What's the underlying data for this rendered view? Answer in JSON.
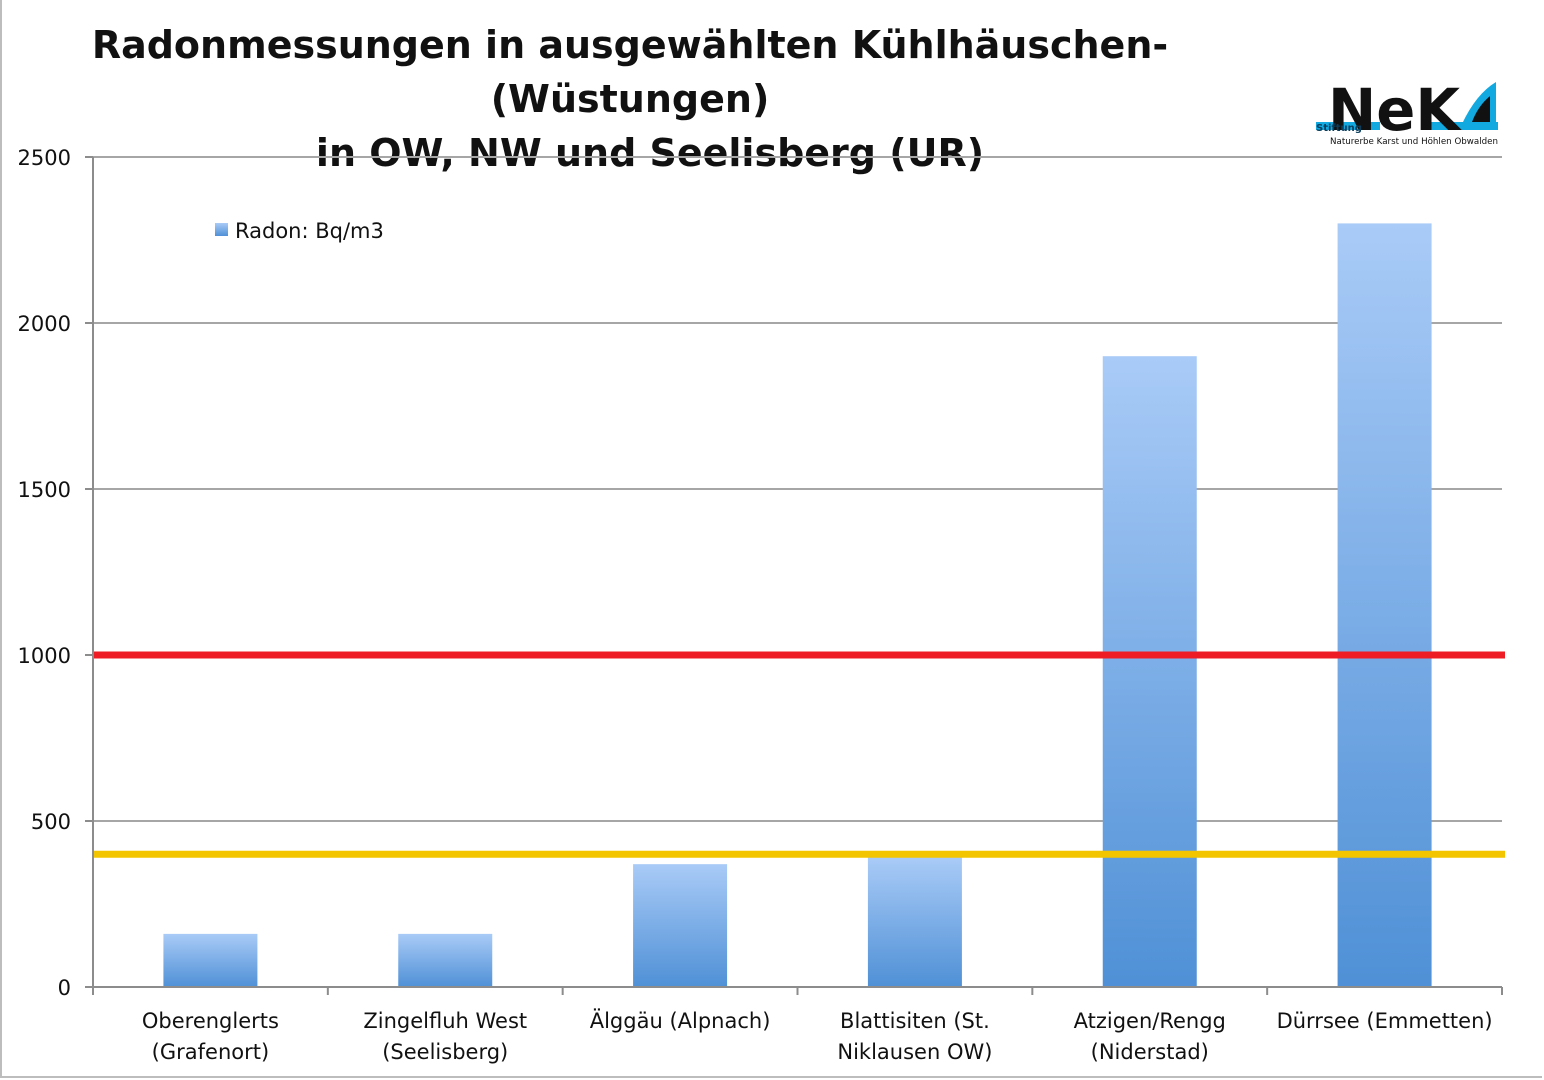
{
  "chart_data": {
    "type": "bar",
    "title_lines": [
      "Radonmessungen in ausgewählten Kühlhäuschen-(Wüstungen)",
      "in OW, NW und Seelisberg (UR)"
    ],
    "categories": [
      [
        "Oberenglerts",
        "(Grafenort)"
      ],
      [
        "Zingelfluh West",
        "(Seelisberg)"
      ],
      [
        "Älggäu (Alpnach)"
      ],
      [
        "Blattisiten (St.",
        "Niklausen OW)"
      ],
      [
        "Atzigen/Rengg",
        "(Niderstad)"
      ],
      [
        "Dürrsee (Emmetten)"
      ]
    ],
    "series": [
      {
        "name": "Radon: Bq/m3",
        "values": [
          160,
          160,
          370,
          390,
          1900,
          2300
        ]
      }
    ],
    "reference_lines": [
      {
        "value": 1000,
        "color": "#ee1c25"
      },
      {
        "value": 400,
        "color": "#f2c500"
      }
    ],
    "ylim": [
      0,
      2500
    ],
    "yticks": [
      0,
      500,
      1000,
      1500,
      2000,
      2500
    ],
    "grid": true,
    "legend_position": "top-left",
    "colors": {
      "bar_top": "#a9cbf7",
      "bar_bottom": "#4f90d6",
      "grid": "#a6a6a6",
      "axis": "#8c8c8c"
    }
  },
  "logo": {
    "brand": "NeK",
    "small": "Stiftung",
    "caption": "Naturerbe Karst und Höhlen Obwalden",
    "accent": "#11a9e0"
  }
}
